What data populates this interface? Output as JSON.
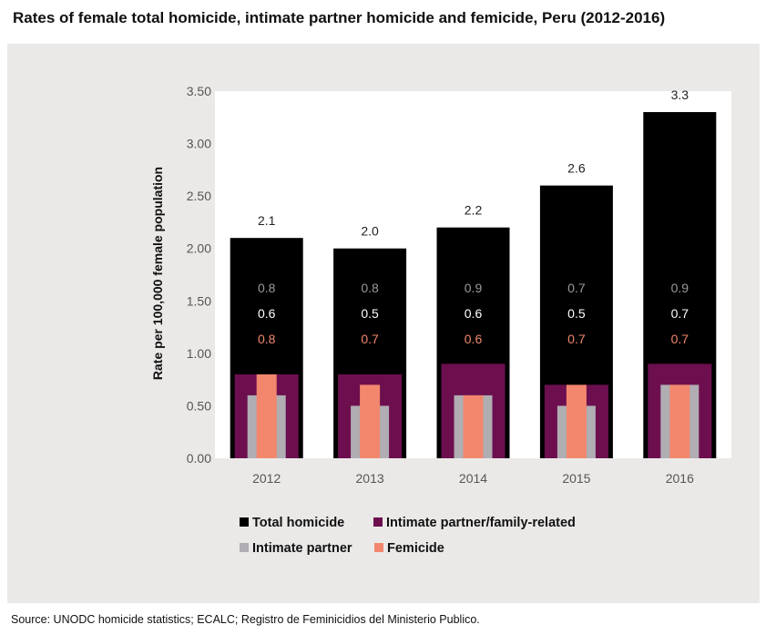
{
  "title": "Rates of female total homicide, intimate partner homicide and femicide, Peru (2012-2016)",
  "source": "Source: UNODC homicide statistics; ECALC; Registro de Feminicidios del Ministerio Publico.",
  "colors": {
    "total": "#000000",
    "ipfr": "#6d0f4f",
    "ip": "#b0adb3",
    "femicide": "#f2876d",
    "label_ipfr": "#9a9a9a",
    "label_ip": "#ffffff",
    "label_fem": "#f2876d"
  },
  "chart_data": {
    "type": "bar",
    "title": "Rates of female total homicide, intimate partner homicide and femicide, Peru (2012-2016)",
    "xlabel": "",
    "ylabel": "Rate per 100,000 female population",
    "ylim": [
      0,
      3.5
    ],
    "yticks": [
      "0.00",
      "0.50",
      "1.00",
      "1.50",
      "2.00",
      "2.50",
      "3.00",
      "3.50"
    ],
    "ytick_values": [
      0,
      0.5,
      1.0,
      1.5,
      2.0,
      2.5,
      3.0,
      3.5
    ],
    "categories": [
      "2012",
      "2013",
      "2014",
      "2015",
      "2016"
    ],
    "series": [
      {
        "name": "Total homicide",
        "values": [
          2.1,
          2.0,
          2.2,
          2.6,
          3.3
        ],
        "labels": [
          "2.1",
          "2.0",
          "2.2",
          "2.6",
          "3.3"
        ]
      },
      {
        "name": "Intimate partner/family-related",
        "values": [
          0.8,
          0.8,
          0.9,
          0.7,
          0.9
        ],
        "labels": [
          "0.8",
          "0.8",
          "0.9",
          "0.7",
          "0.9"
        ]
      },
      {
        "name": "Intimate partner",
        "values": [
          0.6,
          0.5,
          0.6,
          0.5,
          0.7
        ],
        "labels": [
          "0.6",
          "0.5",
          "0.6",
          "0.5",
          "0.7"
        ]
      },
      {
        "name": "Femicide",
        "values": [
          0.8,
          0.7,
          0.6,
          0.7,
          0.7
        ],
        "labels": [
          "0.8",
          "0.7",
          "0.6",
          "0.7",
          "0.7"
        ]
      }
    ],
    "legend": [
      "Total homicide",
      "Intimate partner/family-related",
      "Intimate partner",
      "Femicide"
    ],
    "legend_position": "bottom",
    "grid": false
  }
}
